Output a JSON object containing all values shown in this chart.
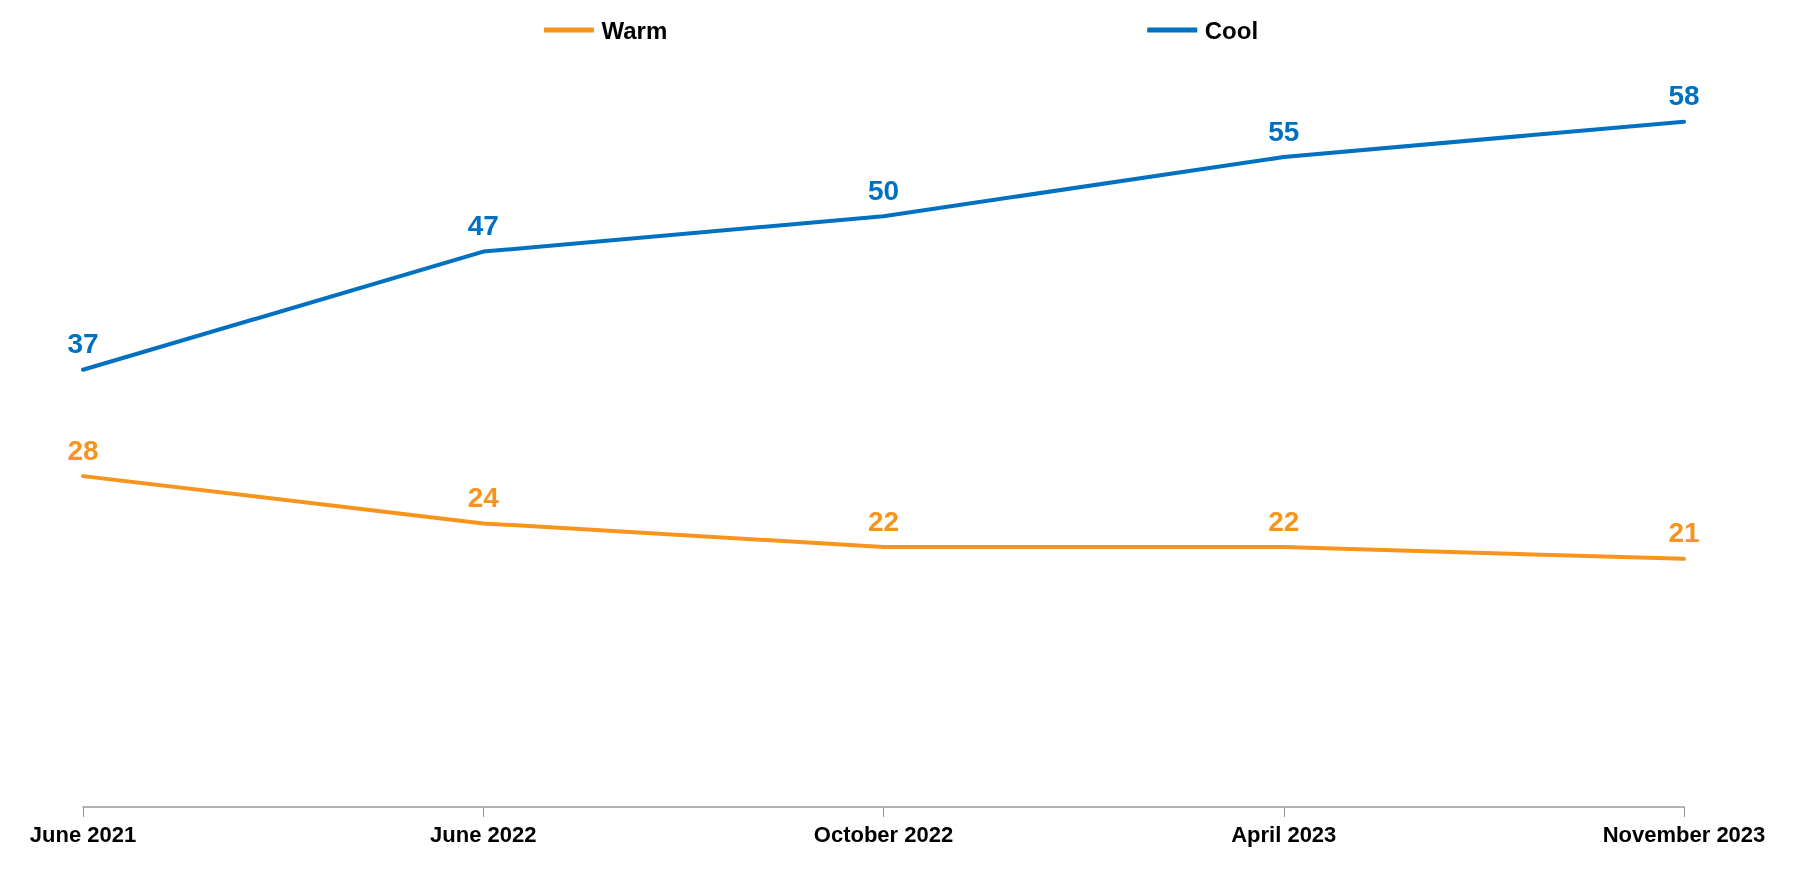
{
  "chart_data": {
    "type": "line",
    "categories": [
      "June 2021",
      "June 2022",
      "October 2022",
      "April 2023",
      "November 2023"
    ],
    "series": [
      {
        "name": "Warm",
        "color": "#f7941d",
        "values": [
          28,
          24,
          22,
          22,
          21
        ]
      },
      {
        "name": "Cool",
        "color": "#0070c0",
        "values": [
          37,
          47,
          50,
          55,
          58
        ]
      }
    ],
    "data_labels": true,
    "legend": "top",
    "grid": false,
    "marker": "none"
  }
}
